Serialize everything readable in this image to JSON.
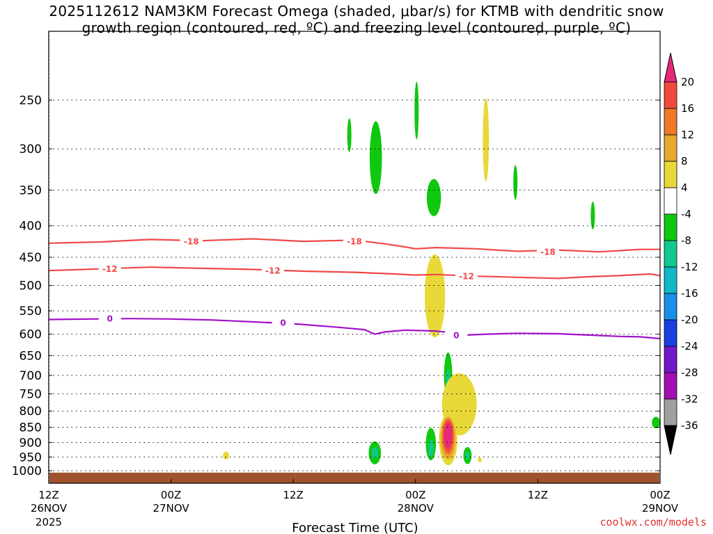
{
  "title_line1": "2025112612 NAM3KM Forecast Omega (shaded, μbar/s) for KTMB with dendritic snow",
  "title_line2": "growth region (contoured, red, ºC) and freezing level (contoured, purple, ºC)",
  "x_axis_title": "Forecast Time (UTC)",
  "credit": "coolwx.com/models",
  "year_label": "2025",
  "chart_data": {
    "type": "heatmap",
    "title": "2025112612 NAM3KM Forecast Omega (shaded, μbar/s) for KTMB with dendritic snow growth region (contoured, red, ºC) and freezing level (contoured, purple, ºC)",
    "xlabel": "Forecast Time (UTC)",
    "ylabel": "",
    "xlim": [
      0,
      60
    ],
    "ylim": [
      1000,
      200
    ],
    "y_scale": "log-pressure",
    "grid": true,
    "x_ticks": [
      {
        "value": 0,
        "label1": "12Z",
        "label2": "26NOV"
      },
      {
        "value": 12,
        "label1": "00Z",
        "label2": "27NOV"
      },
      {
        "value": 24,
        "label1": "12Z",
        "label2": ""
      },
      {
        "value": 36,
        "label1": "00Z",
        "label2": "28NOV"
      },
      {
        "value": 48,
        "label1": "12Z",
        "label2": ""
      },
      {
        "value": 60,
        "label1": "00Z",
        "label2": "29NOV"
      }
    ],
    "y_ticks": [
      250,
      300,
      350,
      400,
      450,
      500,
      550,
      600,
      650,
      700,
      750,
      800,
      850,
      900,
      950,
      1000
    ],
    "colorbar": {
      "levels": [
        20,
        16,
        12,
        8,
        4,
        -4,
        -8,
        -12,
        -16,
        -20,
        -24,
        -28,
        -32,
        -36
      ],
      "colors": [
        "#e8287a",
        "#f04a3c",
        "#f07a28",
        "#e8a830",
        "#e8d838",
        "#ffffff",
        "#10c810",
        "#10c890",
        "#10b8c8",
        "#1890e8",
        "#1840e0",
        "#7018c8",
        "#a010b0",
        "#a0a0a0",
        "#000000"
      ]
    },
    "contours": [
      {
        "name": "-18",
        "color": "#f04848",
        "points": [
          [
            0,
            427
          ],
          [
            5,
            425
          ],
          [
            10,
            421
          ],
          [
            15,
            423
          ],
          [
            20,
            420
          ],
          [
            25,
            424
          ],
          [
            30,
            422
          ],
          [
            33,
            428
          ],
          [
            35,
            433
          ],
          [
            36,
            436
          ],
          [
            38,
            434
          ],
          [
            42,
            436
          ],
          [
            46,
            440
          ],
          [
            50,
            438
          ],
          [
            54,
            441
          ],
          [
            58,
            437
          ],
          [
            60,
            437
          ]
        ],
        "labels": [
          [
            14,
            424
          ],
          [
            30,
            424
          ],
          [
            49,
            441
          ]
        ]
      },
      {
        "name": "-12",
        "color": "#f04848",
        "points": [
          [
            0,
            473
          ],
          [
            5,
            470
          ],
          [
            10,
            467
          ],
          [
            15,
            469
          ],
          [
            20,
            471
          ],
          [
            25,
            474
          ],
          [
            30,
            476
          ],
          [
            34,
            479
          ],
          [
            36,
            481
          ],
          [
            38,
            480
          ],
          [
            42,
            483
          ],
          [
            46,
            485
          ],
          [
            50,
            487
          ],
          [
            53,
            484
          ],
          [
            56,
            482
          ],
          [
            59,
            479
          ],
          [
            60,
            482
          ]
        ],
        "labels": [
          [
            6,
            470
          ],
          [
            22,
            473
          ],
          [
            41,
            483
          ]
        ]
      },
      {
        "name": "0",
        "color": "#a010c8",
        "points": [
          [
            0,
            568
          ],
          [
            4,
            567
          ],
          [
            8,
            566
          ],
          [
            12,
            567
          ],
          [
            16,
            569
          ],
          [
            20,
            573
          ],
          [
            24,
            577
          ],
          [
            28,
            584
          ],
          [
            31,
            590
          ],
          [
            32,
            600
          ],
          [
            33,
            595
          ],
          [
            35,
            591
          ],
          [
            38,
            593
          ],
          [
            40,
            598
          ],
          [
            41,
            602
          ],
          [
            43,
            600
          ],
          [
            46,
            598
          ],
          [
            50,
            599
          ],
          [
            53,
            602
          ],
          [
            56,
            605
          ],
          [
            58,
            606
          ],
          [
            60,
            610
          ]
        ],
        "labels": [
          [
            6,
            566
          ],
          [
            23,
            575
          ],
          [
            40,
            602
          ]
        ]
      }
    ],
    "terrain": {
      "color": "#a0522d",
      "surface_pressure": 1015
    },
    "omega_blobs": [
      {
        "level": 4,
        "t": 17.4,
        "p": 945,
        "rt": 0.3,
        "rp": 14
      },
      {
        "level": -4,
        "t": 29.5,
        "p": 285,
        "rt": 0.2,
        "rp": 18
      },
      {
        "level": -4,
        "t": 32.1,
        "p": 310,
        "rt": 0.6,
        "rp": 42
      },
      {
        "level": -4,
        "t": 36.1,
        "p": 260,
        "rt": 0.2,
        "rp": 28
      },
      {
        "level": 4,
        "t": 42.9,
        "p": 290,
        "rt": 0.3,
        "rp": 45
      },
      {
        "level": -4,
        "t": 45.8,
        "p": 340,
        "rt": 0.2,
        "rp": 22
      },
      {
        "level": -4,
        "t": 53.4,
        "p": 385,
        "rt": 0.2,
        "rp": 20
      },
      {
        "level": -4,
        "t": 37.8,
        "p": 360,
        "rt": 0.7,
        "rp": 25
      },
      {
        "level": 4,
        "t": 37.9,
        "p": 520,
        "rt": 1.0,
        "rp": 80
      },
      {
        "level": -4,
        "t": 39.2,
        "p": 700,
        "rt": 0.4,
        "rp": 60
      },
      {
        "level": -8,
        "t": 39.2,
        "p": 710,
        "rt": 0.2,
        "rp": 25
      },
      {
        "level": 4,
        "t": 40.3,
        "p": 780,
        "rt": 1.7,
        "rp": 90
      },
      {
        "level": -4,
        "t": 32.0,
        "p": 935,
        "rt": 0.6,
        "rp": 40
      },
      {
        "level": -8,
        "t": 32.0,
        "p": 935,
        "rt": 0.3,
        "rp": 20
      },
      {
        "level": -4,
        "t": 37.5,
        "p": 905,
        "rt": 0.5,
        "rp": 55
      },
      {
        "level": -8,
        "t": 37.5,
        "p": 920,
        "rt": 0.25,
        "rp": 30
      },
      {
        "level": 4,
        "t": 39.2,
        "p": 890,
        "rt": 0.9,
        "rp": 85
      },
      {
        "level": 8,
        "t": 39.2,
        "p": 885,
        "rt": 0.75,
        "rp": 70
      },
      {
        "level": 12,
        "t": 39.2,
        "p": 880,
        "rt": 0.6,
        "rp": 60
      },
      {
        "level": 16,
        "t": 39.2,
        "p": 878,
        "rt": 0.5,
        "rp": 52
      },
      {
        "level": 20,
        "t": 39.2,
        "p": 875,
        "rt": 0.4,
        "rp": 42
      },
      {
        "level": -4,
        "t": 41.1,
        "p": 945,
        "rt": 0.4,
        "rp": 30
      },
      {
        "level": -8,
        "t": 41.1,
        "p": 945,
        "rt": 0.2,
        "rp": 15
      },
      {
        "level": 4,
        "t": 42.3,
        "p": 960,
        "rt": 0.2,
        "rp": 8
      },
      {
        "level": -4,
        "t": 59.6,
        "p": 835,
        "rt": 0.4,
        "rp": 18
      }
    ]
  }
}
